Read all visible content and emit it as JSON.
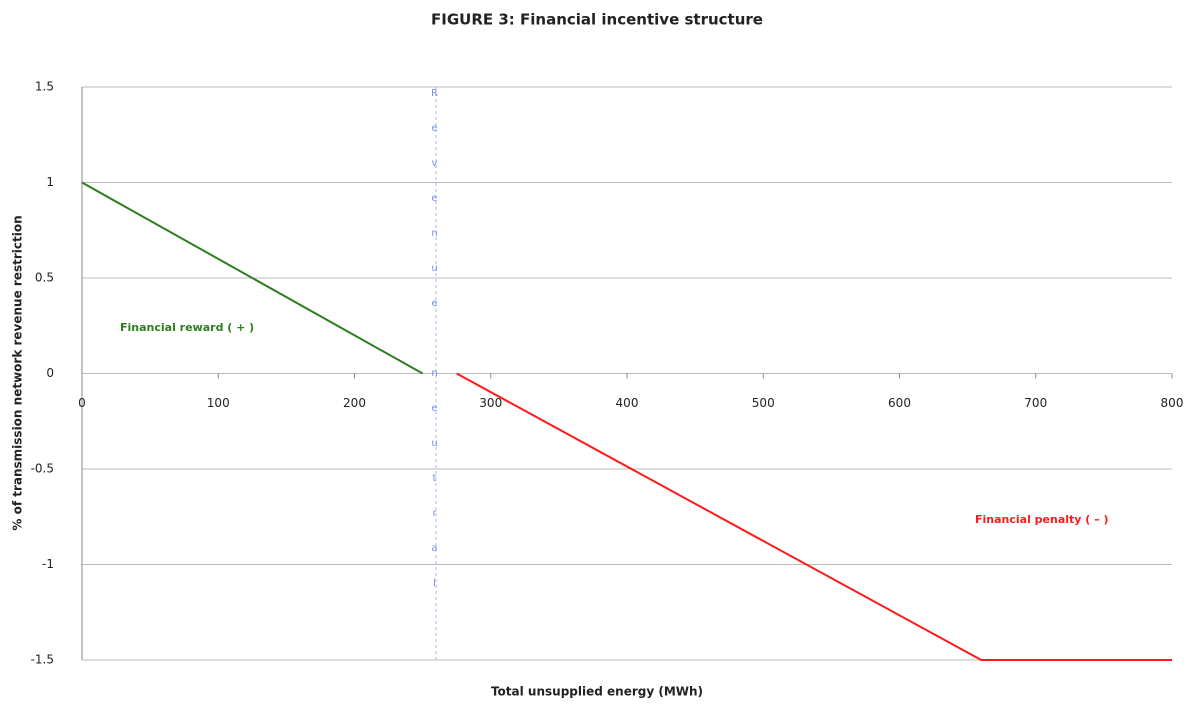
{
  "chart_data": {
    "type": "line",
    "title": "FIGURE 3: Financial incentive structure",
    "x_label": "Total unsupplied energy (MWh)",
    "y_label": "% of transmission network revenue restriction",
    "annotations": [
      "Financial reward ( + )",
      "Financial penalty ( – )",
      "Revenue neutral"
    ],
    "series": [
      {
        "color": "#2e7d1e",
        "x": [
          0,
          250
        ],
        "values": [
          1,
          0
        ]
      },
      {
        "color": "#ff1a1a",
        "x": [
          275,
          660,
          800
        ],
        "values": [
          0,
          -1.5,
          -1.5
        ]
      }
    ],
    "xlim": [
      0,
      800
    ],
    "xticks": [
      0,
      100,
      200,
      300,
      400,
      500,
      600,
      700,
      800
    ],
    "ylim": [
      -1.5,
      1.5
    ],
    "yticks": [
      1.5,
      1,
      0.5,
      0,
      -0.5,
      -1,
      -1.5
    ],
    "grid": true
  }
}
